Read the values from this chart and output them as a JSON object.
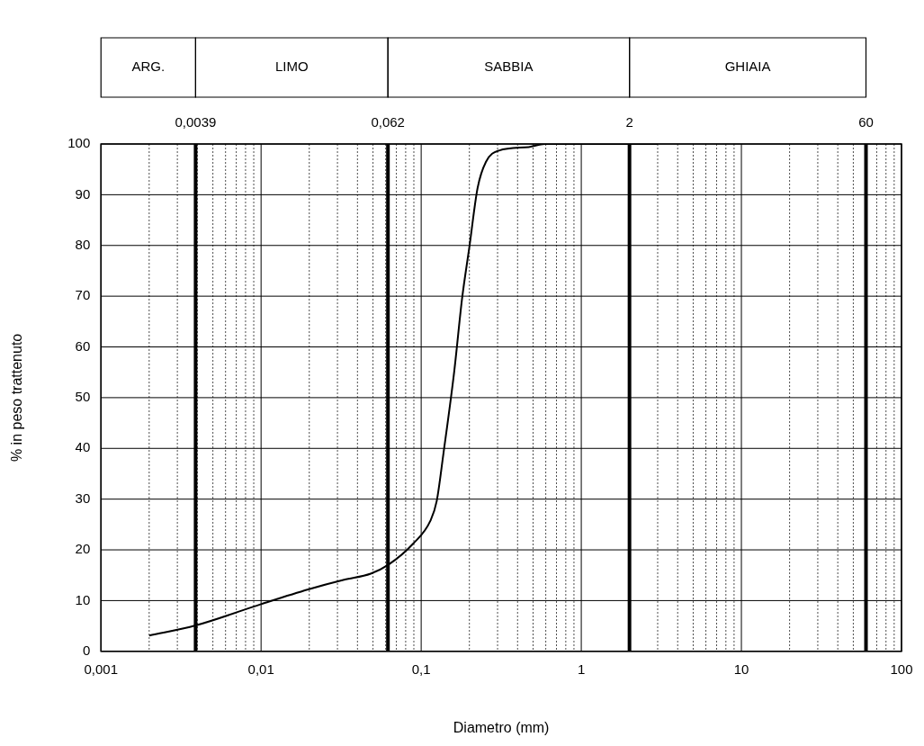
{
  "chart_data": {
    "type": "line",
    "xlabel": "Diametro (mm)",
    "ylabel": "% in peso trattenuto",
    "log": "x",
    "grid": true,
    "legend": false,
    "marker": "none",
    "line_style": "solid",
    "xlim": [
      0.001,
      100
    ],
    "ylim": [
      0,
      100
    ],
    "xticks": [
      {
        "value": 0.001,
        "label": "0,001"
      },
      {
        "value": 0.01,
        "label": "0,01"
      },
      {
        "value": 0.1,
        "label": "0,1"
      },
      1,
      10,
      100
    ],
    "yticks": [
      0,
      10,
      20,
      30,
      40,
      50,
      60,
      70,
      80,
      90,
      100
    ],
    "series": [
      {
        "color": "#000000",
        "x": [
          0.002,
          0.0039,
          0.01,
          0.0197,
          0.033,
          0.0484,
          0.062,
          0.089,
          0.114,
          0.125,
          0.138,
          0.161,
          0.18,
          0.2,
          0.225,
          0.254,
          0.306,
          0.47,
          0.59,
          0.76,
          3
        ],
        "values": [
          3.1,
          5.1,
          9.3,
          12.2,
          14.1,
          15.3,
          17,
          21.2,
          25.7,
          29.6,
          39.2,
          55.3,
          69.5,
          79.7,
          91.3,
          96.5,
          98.7,
          99.4,
          100,
          100,
          100
        ]
      }
    ],
    "ref_lines": [
      {
        "axis": "x",
        "value": 0.0039,
        "label": "0,0039",
        "color": "#000000"
      },
      {
        "axis": "x",
        "value": 0.062,
        "label": "0,062",
        "color": "#000000"
      },
      {
        "axis": "x",
        "value": 2,
        "label": "2",
        "color": "#000000"
      },
      {
        "axis": "x",
        "value": 60,
        "label": "60",
        "color": "#000000"
      }
    ],
    "annotations": [
      "ARG.",
      "LIMO",
      "SABBIA",
      "GHIAIA"
    ]
  }
}
